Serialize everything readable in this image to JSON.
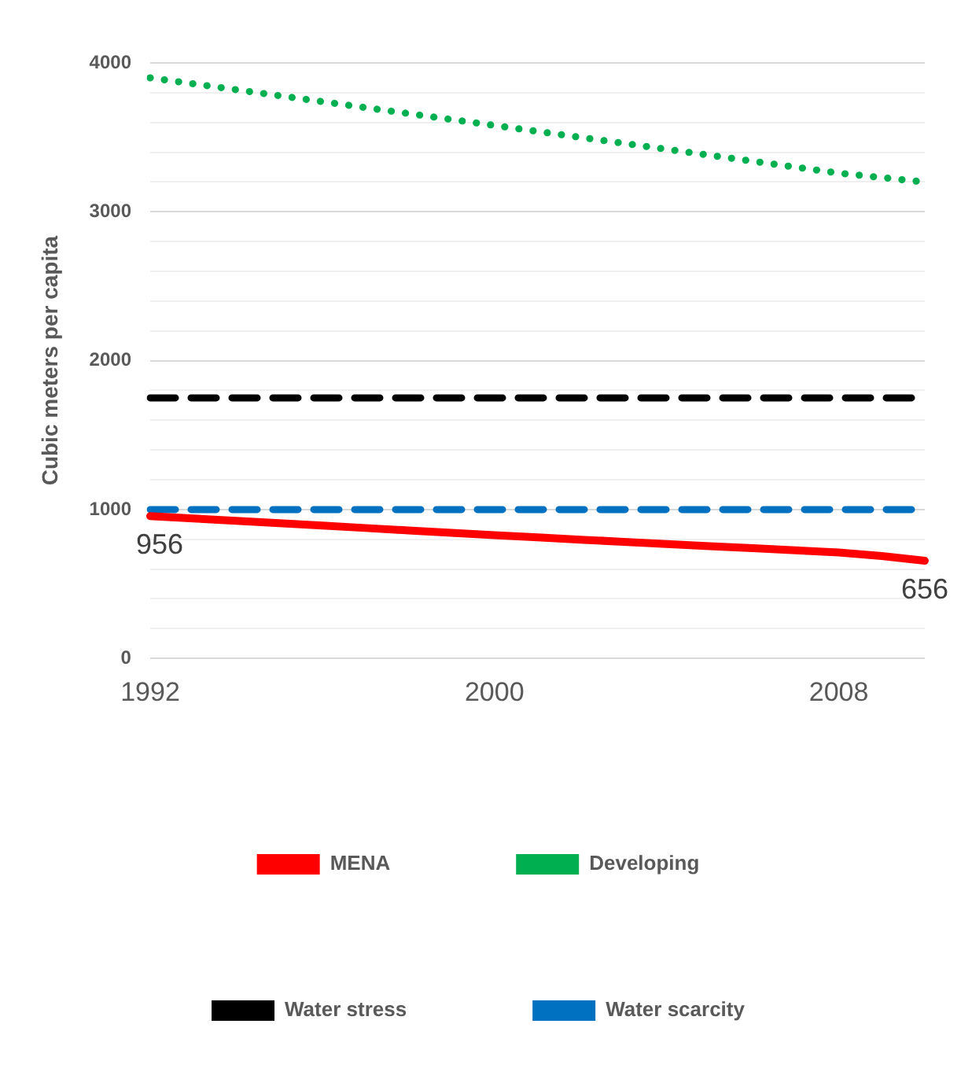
{
  "chart_data": {
    "type": "line",
    "ylabel": "Cubic meters per capita",
    "categories": [
      "1992",
      null,
      null,
      null,
      null,
      null,
      null,
      null,
      "2000",
      null,
      null,
      null,
      null,
      null,
      null,
      null,
      "2008",
      null,
      null
    ],
    "series": [
      {
        "name": "MENA",
        "color": "#ff0000",
        "line_style": "solid",
        "values": [
          956,
          940,
          924,
          908,
          892,
          876,
          860,
          844,
          828,
          813,
          798,
          783,
          768,
          754,
          740,
          726,
          712,
          688,
          656
        ],
        "value_labels": [
          "956",
          null,
          null,
          null,
          null,
          null,
          null,
          null,
          null,
          null,
          null,
          null,
          null,
          null,
          null,
          null,
          null,
          null,
          "656"
        ]
      },
      {
        "name": "Developing",
        "color": "#00b050",
        "line_style": "dotted",
        "values": [
          3900,
          3860,
          3820,
          3780,
          3740,
          3700,
          3660,
          3620,
          3580,
          3540,
          3500,
          3460,
          3420,
          3380,
          3340,
          3300,
          3260,
          3230,
          3200
        ]
      },
      {
        "name": "Water stress",
        "color": "#000000",
        "line_style": "dashed",
        "values": [
          1750,
          1750,
          1750,
          1750,
          1750,
          1750,
          1750,
          1750,
          1750,
          1750,
          1750,
          1750,
          1750,
          1750,
          1750,
          1750,
          1750,
          1750,
          1750
        ]
      },
      {
        "name": "Water scarcity",
        "color": "#0070c0",
        "line_style": "dashed",
        "values": [
          1000,
          1000,
          1000,
          1000,
          1000,
          1000,
          1000,
          1000,
          1000,
          1000,
          1000,
          1000,
          1000,
          1000,
          1000,
          1000,
          1000,
          1000,
          1000
        ]
      }
    ],
    "ylim": [
      0,
      4000
    ],
    "yticks": [
      0,
      {
        "value": 200,
        "label": null
      },
      {
        "value": 400,
        "label": null
      },
      {
        "value": 600,
        "label": null
      },
      {
        "value": 800,
        "label": null
      },
      1000,
      {
        "value": 1200,
        "label": null
      },
      {
        "value": 1400,
        "label": null
      },
      {
        "value": 1600,
        "label": null
      },
      {
        "value": 1800,
        "label": null
      },
      2000,
      {
        "value": 2200,
        "label": null
      },
      {
        "value": 2400,
        "label": null
      },
      {
        "value": 2600,
        "label": null
      },
      {
        "value": 2800,
        "label": null
      },
      3000,
      {
        "value": 3200,
        "label": null
      },
      {
        "value": 3400,
        "label": null
      },
      {
        "value": 3600,
        "label": null
      },
      {
        "value": 3800,
        "label": null
      },
      4000
    ],
    "grid": "y",
    "legend": "bottom",
    "marker": "none"
  }
}
